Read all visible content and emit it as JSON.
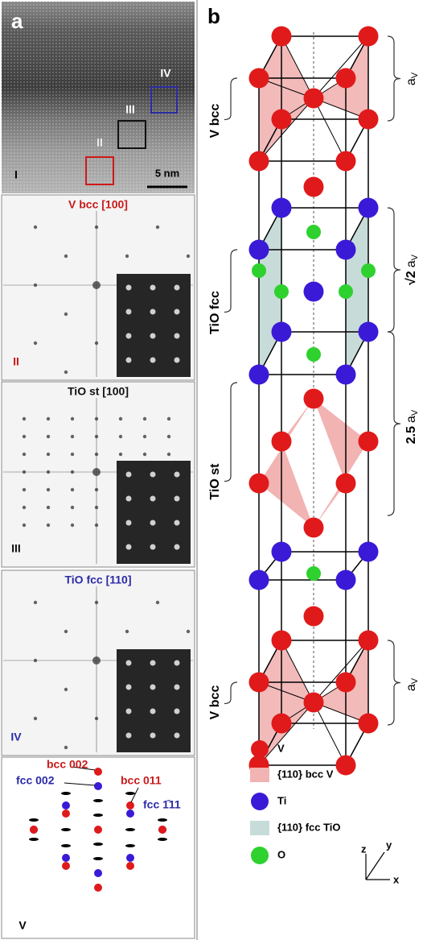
{
  "panel_a": {
    "letter": "a",
    "hrtem": {
      "regions": [
        "IV",
        "III",
        "II",
        "I"
      ],
      "scale_bar": "5 nm"
    },
    "fft_panels": [
      {
        "title": "V bcc [100]",
        "region": "II"
      },
      {
        "title": "TiO st [100]",
        "region": "III"
      },
      {
        "title": "TiO fcc [110]",
        "region": "IV"
      }
    ],
    "diffraction": {
      "labels": [
        "bcc 002",
        "fcc 002",
        "bcc 011",
        "fcc 1̄11"
      ],
      "region": "V"
    }
  },
  "panel_b": {
    "letter": "b",
    "phases": [
      "V bcc",
      "TiO fcc",
      "TiO st",
      "V bcc"
    ],
    "dimensions": [
      {
        "symbol": "a",
        "subscript": "V"
      },
      {
        "prefix": "√2",
        "symbol": "a",
        "subscript": "V"
      },
      {
        "prefix": "2.5",
        "symbol": "a",
        "subscript": "V"
      },
      {
        "symbol": "a",
        "subscript": "V"
      }
    ],
    "legend": [
      {
        "label": "V",
        "color": "#e01a1a"
      },
      {
        "label": "{110} bcc V",
        "color": "#f2b3b3"
      },
      {
        "label": "Ti",
        "color": "#3a1ad6"
      },
      {
        "label": "{110} fcc TiO",
        "color": "#c7dcd8"
      },
      {
        "label": "O",
        "color": "#2ed12e"
      }
    ],
    "axes": [
      "z",
      "y",
      "x"
    ]
  }
}
